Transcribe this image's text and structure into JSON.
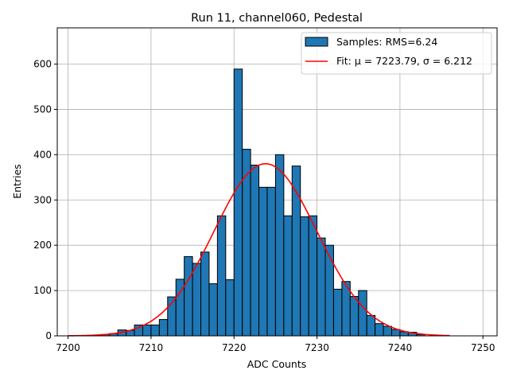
{
  "chart_data": {
    "type": "bar",
    "title": "Run 11, channel060, Pedestal",
    "xlabel": "ADC Counts",
    "ylabel": "Entries",
    "xlim": [
      7198.7,
      7251.7
    ],
    "ylim": [
      0,
      680
    ],
    "xticks": [
      7200,
      7210,
      7220,
      7230,
      7240,
      7250
    ],
    "yticks": [
      0,
      100,
      200,
      300,
      400,
      500,
      600
    ],
    "grid": true,
    "legend_placement": "top-right",
    "bin_width": 1,
    "bins": [
      {
        "x": 7204,
        "value": 3
      },
      {
        "x": 7205,
        "value": 5
      },
      {
        "x": 7206,
        "value": 13
      },
      {
        "x": 7207,
        "value": 12
      },
      {
        "x": 7208,
        "value": 24
      },
      {
        "x": 7209,
        "value": 24
      },
      {
        "x": 7210,
        "value": 24
      },
      {
        "x": 7211,
        "value": 36
      },
      {
        "x": 7212,
        "value": 86
      },
      {
        "x": 7213,
        "value": 125
      },
      {
        "x": 7214,
        "value": 175
      },
      {
        "x": 7215,
        "value": 160
      },
      {
        "x": 7216,
        "value": 185
      },
      {
        "x": 7217,
        "value": 115
      },
      {
        "x": 7218,
        "value": 265
      },
      {
        "x": 7219,
        "value": 124
      },
      {
        "x": 7220,
        "value": 589
      },
      {
        "x": 7221,
        "value": 412
      },
      {
        "x": 7222,
        "value": 377
      },
      {
        "x": 7223,
        "value": 328
      },
      {
        "x": 7224,
        "value": 328
      },
      {
        "x": 7225,
        "value": 400
      },
      {
        "x": 7226,
        "value": 265
      },
      {
        "x": 7227,
        "value": 375
      },
      {
        "x": 7228,
        "value": 263
      },
      {
        "x": 7229,
        "value": 265
      },
      {
        "x": 7230,
        "value": 216
      },
      {
        "x": 7231,
        "value": 200
      },
      {
        "x": 7232,
        "value": 103
      },
      {
        "x": 7233,
        "value": 120
      },
      {
        "x": 7234,
        "value": 87
      },
      {
        "x": 7235,
        "value": 100
      },
      {
        "x": 7236,
        "value": 45
      },
      {
        "x": 7237,
        "value": 27
      },
      {
        "x": 7238,
        "value": 21
      },
      {
        "x": 7239,
        "value": 14
      },
      {
        "x": 7240,
        "value": 9
      },
      {
        "x": 7241,
        "value": 8
      },
      {
        "x": 7242,
        "value": 3
      }
    ],
    "fit": {
      "mu": 7223.79,
      "sigma": 6.212,
      "amplitude": 380,
      "x_range": [
        7200,
        7246
      ]
    },
    "series": [
      {
        "name": "Samples: RMS=6.24",
        "kind": "histogram",
        "color": "#1f77b4",
        "edgecolor": "#000000"
      },
      {
        "name": "Fit: μ = 7223.79, σ = 6.212",
        "kind": "line",
        "color": "#ff0000"
      }
    ]
  }
}
